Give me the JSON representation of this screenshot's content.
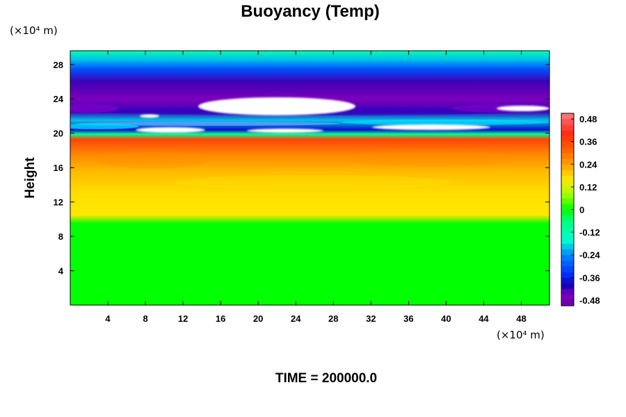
{
  "chart_data": {
    "type": "heatmap",
    "title": "Buoyancy (Temp)",
    "ylabel": "Height",
    "xunit": "(×10⁴ m)",
    "yunit": "(×10⁴ m)",
    "footer": "TIME = 200000.0",
    "xlim": [
      0,
      51
    ],
    "ylim": [
      0,
      29.6
    ],
    "xticks": [
      "4",
      "8",
      "12",
      "16",
      "20",
      "24",
      "28",
      "32",
      "36",
      "40",
      "44",
      "48"
    ],
    "yticks": [
      "4",
      "8",
      "12",
      "16",
      "20",
      "24",
      "28"
    ],
    "colorbar": {
      "range": [
        -0.51,
        0.51
      ],
      "tick_values": [
        0.48,
        0.36,
        0.24,
        0.12,
        0,
        -0.12,
        -0.24,
        -0.36,
        -0.48
      ],
      "tick_labels": [
        "0.48",
        "0.36",
        "0.24",
        "0.12",
        "0",
        "-0.12",
        "-0.24",
        "-0.36",
        "-0.48"
      ]
    },
    "vertical_profile": [
      {
        "height": 0,
        "value": 0.0
      },
      {
        "height": 9.5,
        "value": 0.0
      },
      {
        "height": 10.5,
        "value": 0.16
      },
      {
        "height": 13,
        "value": 0.17
      },
      {
        "height": 15.5,
        "value": 0.21
      },
      {
        "height": 17.5,
        "value": 0.27
      },
      {
        "height": 19.3,
        "value": 0.36
      },
      {
        "height": 19.9,
        "value": -0.08
      },
      {
        "height": 20.4,
        "value": -0.38
      },
      {
        "height": 21.5,
        "value": -0.2
      },
      {
        "height": 22.5,
        "value": -0.42
      },
      {
        "height": 24,
        "value": -0.46
      },
      {
        "height": 26,
        "value": -0.42
      },
      {
        "height": 27.5,
        "value": -0.3
      },
      {
        "height": 28.6,
        "value": -0.2
      },
      {
        "height": 29.6,
        "value": -0.12
      }
    ],
    "colors": {
      "pos_max": "#ff7f7f",
      "red": "#ff2a10",
      "orange": "#ffa000",
      "yellow": "#ffe800",
      "green": "#00ff00",
      "cyan": "#00ffd0",
      "blue": "#0030ff",
      "navy": "#1000b0",
      "violet": "#8000c0",
      "out_of_range": "#ffffff"
    }
  }
}
